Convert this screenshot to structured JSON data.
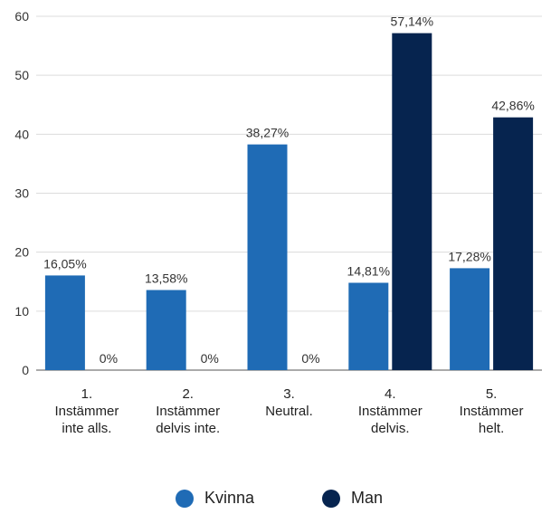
{
  "chart_data": {
    "type": "bar",
    "categories": [
      [
        "1.",
        "Instämmer",
        "inte alls."
      ],
      [
        "2.",
        "Instämmer",
        "delvis inte."
      ],
      [
        "3.",
        "Neutral."
      ],
      [
        "4.",
        "Instämmer",
        "delvis."
      ],
      [
        "5.",
        "Instämmer",
        "helt."
      ]
    ],
    "series": [
      {
        "name": "Kvinna",
        "color": "#1f6bb5",
        "values": [
          16.05,
          13.58,
          38.27,
          14.81,
          17.28
        ],
        "labels": [
          "16,05%",
          "13,58%",
          "38,27%",
          "14,81%",
          "17,28%"
        ]
      },
      {
        "name": "Man",
        "color": "#06244f",
        "values": [
          0,
          0,
          0,
          57.14,
          42.86
        ],
        "labels": [
          "0%",
          "0%",
          "0%",
          "57,14%",
          "42,86%"
        ]
      }
    ],
    "ylim": [
      0,
      60
    ],
    "yticks": [
      0,
      10,
      20,
      30,
      40,
      50,
      60
    ],
    "grid": true,
    "legend_position": "bottom"
  }
}
